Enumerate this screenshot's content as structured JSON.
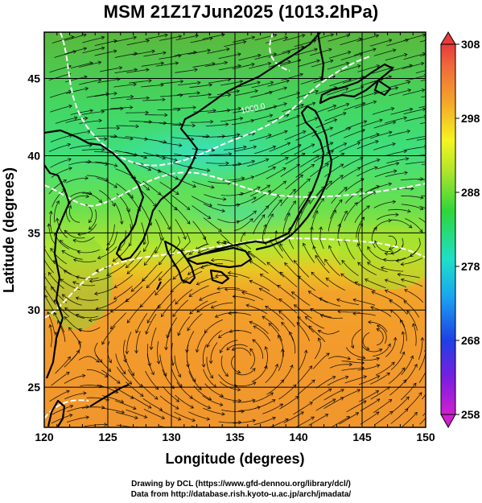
{
  "title": "MSM 21Z17Jun2025 (1013.2hPa)",
  "map": {
    "xlabel": "Longitude (degrees)",
    "ylabel": "Latitude  (degrees)",
    "lon_range": [
      120,
      150
    ],
    "lat_range": [
      22.4,
      48
    ],
    "lon_ticks": [
      "120",
      "125",
      "130",
      "135",
      "140",
      "145",
      "150"
    ],
    "lat_ticks": [
      "25",
      "30",
      "35",
      "40",
      "45"
    ],
    "contour_label": "1000.0",
    "grid": true
  },
  "colorbar": {
    "min": 258,
    "max": 308,
    "labels": [
      "258",
      "268",
      "278",
      "288",
      "298",
      "308"
    ]
  },
  "footer": {
    "line1": "Drawing by DCL (https://www.gfd-dennou.org/library/dcl/)",
    "line2": "Data from http://database.rish.kyoto-u.ac.jp/arch/jmadata/"
  }
}
